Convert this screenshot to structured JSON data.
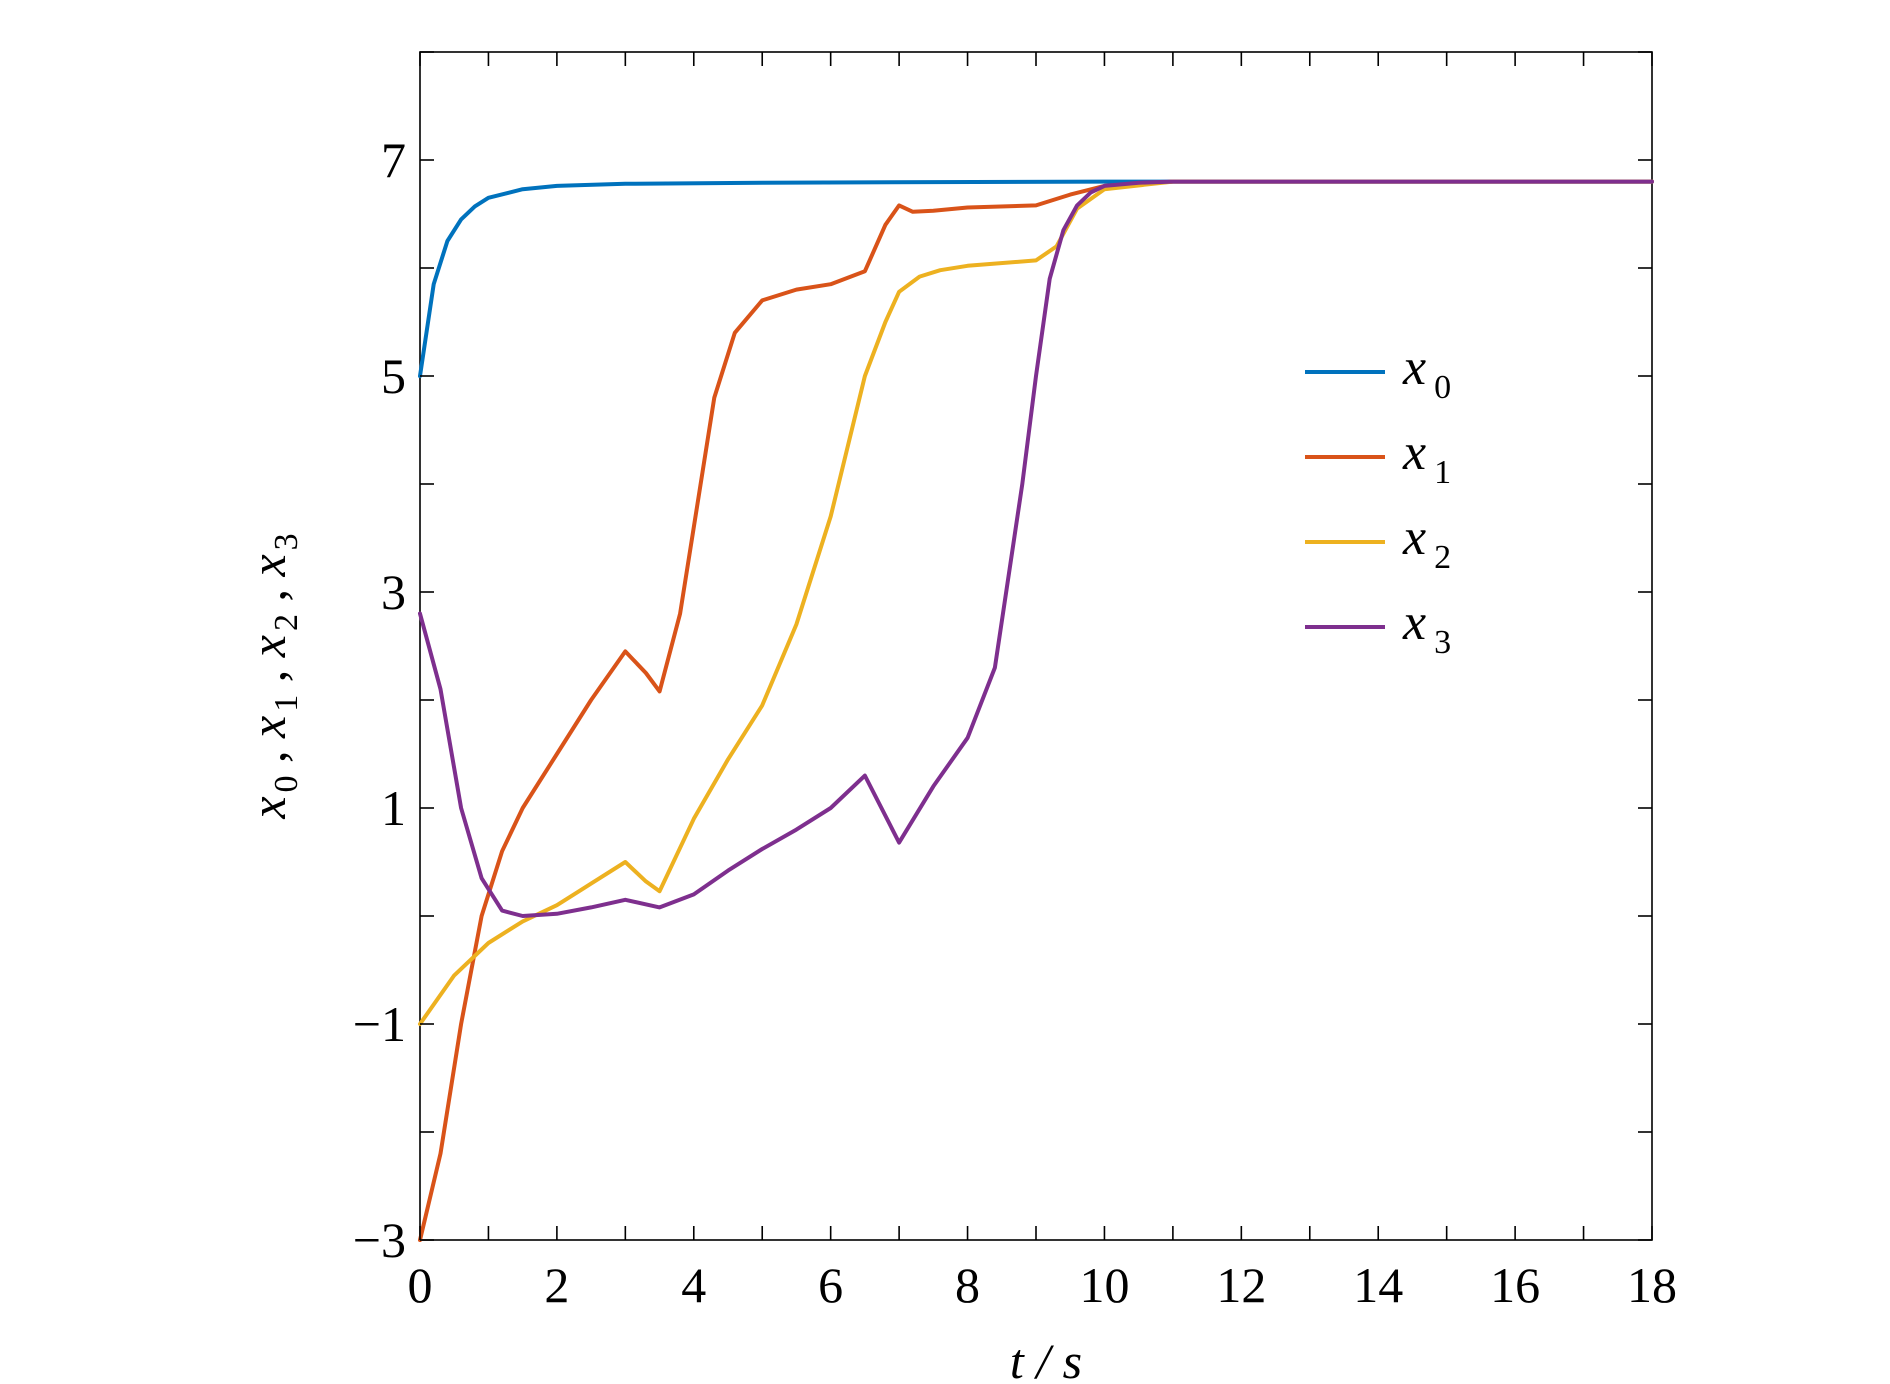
{
  "chart_data": {
    "type": "line",
    "xlabel": "t / s",
    "ylabel": "x0 , x1 , x2 , x3",
    "xlim": [
      0,
      18
    ],
    "ylim": [
      -3,
      8
    ],
    "xticks": [
      0,
      2,
      4,
      6,
      8,
      10,
      12,
      14,
      16,
      18
    ],
    "xtick_labels": [
      "0",
      "2",
      "4",
      "6",
      "8",
      "10",
      "12",
      "14",
      "16",
      "18"
    ],
    "yticks": [
      -3,
      -1,
      1,
      3,
      5,
      7
    ],
    "ytick_labels": [
      "−3",
      "−1",
      "1",
      "3",
      "5",
      "7"
    ],
    "grid": false,
    "legend_position": "right",
    "series": [
      {
        "name": "x0",
        "sym": "x",
        "sub": "0",
        "color": "#0072BD",
        "x": [
          0,
          0.2,
          0.4,
          0.6,
          0.8,
          1.0,
          1.5,
          2.0,
          3.0,
          5.0,
          10.0,
          18.0
        ],
        "y": [
          5.0,
          5.85,
          6.25,
          6.45,
          6.57,
          6.65,
          6.73,
          6.76,
          6.78,
          6.79,
          6.8,
          6.8
        ]
      },
      {
        "name": "x1",
        "sym": "x",
        "sub": "1",
        "color": "#D95319",
        "x": [
          0,
          0.3,
          0.6,
          0.9,
          1.2,
          1.5,
          2.0,
          2.5,
          3.0,
          3.3,
          3.5,
          3.8,
          4.0,
          4.3,
          4.6,
          5.0,
          5.5,
          6.0,
          6.5,
          6.8,
          7.0,
          7.2,
          7.5,
          8.0,
          9.0,
          9.5,
          10.0,
          11.0,
          18.0
        ],
        "y": [
          -3.0,
          -2.2,
          -1.0,
          0.0,
          0.6,
          1.0,
          1.5,
          2.0,
          2.45,
          2.25,
          2.08,
          2.8,
          3.6,
          4.8,
          5.4,
          5.7,
          5.8,
          5.85,
          5.97,
          6.4,
          6.58,
          6.52,
          6.53,
          6.56,
          6.58,
          6.68,
          6.76,
          6.8,
          6.8
        ]
      },
      {
        "name": "x2",
        "sym": "x",
        "sub": "2",
        "color": "#EDB120",
        "x": [
          0,
          0.5,
          1.0,
          1.5,
          2.0,
          2.5,
          3.0,
          3.3,
          3.5,
          4.0,
          4.5,
          5.0,
          5.5,
          6.0,
          6.5,
          6.8,
          7.0,
          7.3,
          7.6,
          8.0,
          9.0,
          9.3,
          9.6,
          10.0,
          11.0,
          18.0
        ],
        "y": [
          -1.0,
          -0.55,
          -0.25,
          -0.05,
          0.1,
          0.3,
          0.5,
          0.32,
          0.23,
          0.9,
          1.45,
          1.95,
          2.7,
          3.7,
          5.0,
          5.5,
          5.78,
          5.92,
          5.98,
          6.02,
          6.07,
          6.2,
          6.55,
          6.73,
          6.8,
          6.8
        ]
      },
      {
        "name": "x3",
        "sym": "x",
        "sub": "3",
        "color": "#7E2F8E",
        "x": [
          0,
          0.3,
          0.6,
          0.9,
          1.2,
          1.5,
          2.0,
          2.5,
          3.0,
          3.5,
          4.0,
          4.5,
          5.0,
          5.5,
          6.0,
          6.5,
          7.0,
          7.5,
          8.0,
          8.4,
          8.8,
          9.0,
          9.2,
          9.4,
          9.6,
          9.8,
          10.0,
          10.5,
          11.0,
          18.0
        ],
        "y": [
          2.8,
          2.1,
          1.0,
          0.35,
          0.05,
          0.0,
          0.02,
          0.08,
          0.15,
          0.08,
          0.2,
          0.42,
          0.62,
          0.8,
          1.0,
          1.3,
          0.68,
          1.2,
          1.65,
          2.3,
          4.0,
          5.0,
          5.9,
          6.35,
          6.58,
          6.7,
          6.76,
          6.79,
          6.8,
          6.8
        ]
      }
    ]
  }
}
